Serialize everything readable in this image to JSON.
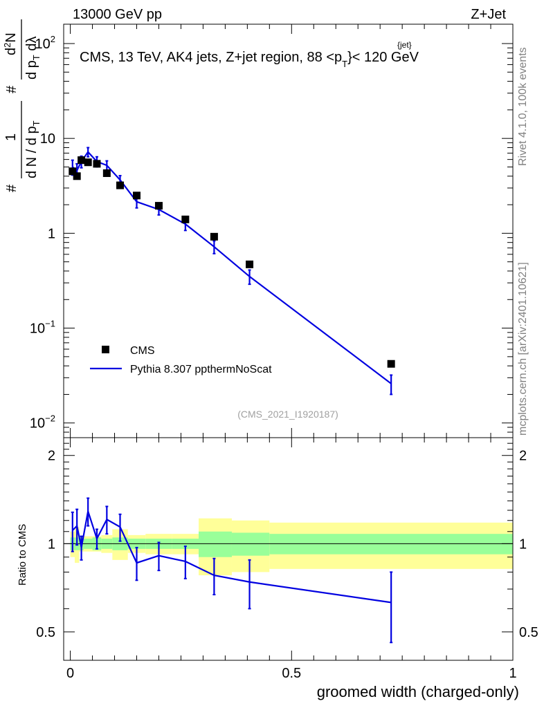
{
  "header": {
    "left": "13000 GeV pp",
    "right": "Z+Jet"
  },
  "side_labels": {
    "rivet": "Rivet 4.1.0,  100k events",
    "mcplots": "mcplots.cern.ch [arXiv:2401.10621]"
  },
  "chart_data": {
    "type": "scatter",
    "title": {
      "main": "CMS, 13 TeV, AK4 jets, Z+jet region, 88 <p",
      "sub": "T",
      "sup": "{jet}",
      "tail": "}< 120 GeV"
    },
    "watermark": "(CMS_2021_I1920187)",
    "xlabel": "groomed width (charged-only)",
    "ylabel_main": {
      "frac1": "1",
      "hash": "#",
      "den1": "d N / d p",
      "den1_sub": "T",
      "num2": "d",
      "num2_sup": "2",
      "num2_tail": "N",
      "hash2": "#",
      "den2": "d p",
      "den2_sub": "T",
      "den2_tail": " dλ"
    },
    "ylabel_ratio": "Ratio to CMS",
    "xlim": [
      -0.015,
      1.0
    ],
    "ylim_main": [
      0.007,
      160
    ],
    "ylim_ratio": [
      0.4,
      2.3
    ],
    "x_ticks": [
      {
        "v": 0,
        "label": "0"
      },
      {
        "v": 0.5,
        "label": "0.5"
      },
      {
        "v": 1,
        "label": "1"
      }
    ],
    "y_ticks_main": [
      {
        "v": 0.01,
        "base": "10",
        "exp": "−2"
      },
      {
        "v": 0.1,
        "base": "10",
        "exp": "−1"
      },
      {
        "v": 1,
        "base": "1",
        "exp": ""
      },
      {
        "v": 10,
        "base": "10",
        "exp": ""
      },
      {
        "v": 100,
        "base": "10",
        "exp": "2"
      }
    ],
    "y_ticks_ratio": [
      {
        "v": 0.5,
        "label": "0.5"
      },
      {
        "v": 1,
        "label": "1"
      },
      {
        "v": 2,
        "label": "2"
      }
    ],
    "legend": {
      "placement": "lower-left",
      "data_label": "CMS",
      "mc_label": "Pythia 8.307 ppthermNoScat"
    },
    "colors": {
      "data": "#000000",
      "mc": "#0000e0",
      "band_inner": "#99ff99",
      "band_outer": "#ffff99"
    },
    "data": [
      {
        "x": 0.005,
        "xlo": 0.0,
        "xhi": 0.01,
        "y": 4.5,
        "stat": 0.05,
        "tot": 0.1
      },
      {
        "x": 0.015,
        "xlo": 0.01,
        "xhi": 0.02,
        "y": 4.0,
        "stat": 0.05,
        "tot": 0.14
      },
      {
        "x": 0.025,
        "xlo": 0.02,
        "xhi": 0.03,
        "y": 5.9,
        "stat": 0.05,
        "tot": 0.06
      },
      {
        "x": 0.04,
        "xlo": 0.03,
        "xhi": 0.05,
        "y": 5.6,
        "stat": 0.04,
        "tot": 0.06
      },
      {
        "x": 0.06,
        "xlo": 0.05,
        "xhi": 0.07,
        "y": 5.4,
        "stat": 0.05,
        "tot": 0.06
      },
      {
        "x": 0.0825,
        "xlo": 0.07,
        "xhi": 0.095,
        "y": 4.3,
        "stat": 0.04,
        "tot": 0.07
      },
      {
        "x": 0.1125,
        "xlo": 0.095,
        "xhi": 0.13,
        "y": 3.2,
        "stat": 0.05,
        "tot": 0.12
      },
      {
        "x": 0.15,
        "xlo": 0.13,
        "xhi": 0.17,
        "y": 2.5,
        "stat": 0.04,
        "tot": 0.07
      },
      {
        "x": 0.2,
        "xlo": 0.17,
        "xhi": 0.23,
        "y": 1.95,
        "stat": 0.04,
        "tot": 0.08
      },
      {
        "x": 0.26,
        "xlo": 0.23,
        "xhi": 0.29,
        "y": 1.4,
        "stat": 0.04,
        "tot": 0.08
      },
      {
        "x": 0.325,
        "xlo": 0.29,
        "xhi": 0.365,
        "y": 0.92,
        "stat": 0.1,
        "tot": 0.22
      },
      {
        "x": 0.405,
        "xlo": 0.365,
        "xhi": 0.45,
        "y": 0.47,
        "stat": 0.09,
        "tot": 0.2
      },
      {
        "x": 0.725,
        "xlo": 0.45,
        "xhi": 1.0,
        "y": 0.042,
        "stat": 0.08,
        "tot": 0.18
      }
    ],
    "mc": [
      {
        "x": 0.005,
        "y": 5.0,
        "err": 0.9,
        "ratio": 1.11,
        "rerr": 0.17
      },
      {
        "x": 0.015,
        "y": 4.6,
        "err": 0.8,
        "ratio": 1.15,
        "rerr": 0.16
      },
      {
        "x": 0.025,
        "y": 5.7,
        "err": 0.8,
        "ratio": 0.97,
        "rerr": 0.09
      },
      {
        "x": 0.04,
        "y": 7.2,
        "err": 0.8,
        "ratio": 1.29,
        "rerr": 0.14
      },
      {
        "x": 0.06,
        "y": 5.7,
        "err": 0.7,
        "ratio": 1.04,
        "rerr": 0.08
      },
      {
        "x": 0.0825,
        "y": 5.2,
        "err": 0.6,
        "ratio": 1.21,
        "rerr": 0.13
      },
      {
        "x": 0.1125,
        "y": 3.65,
        "err": 0.4,
        "ratio": 1.14,
        "rerr": 0.12
      },
      {
        "x": 0.15,
        "y": 2.15,
        "err": 0.3,
        "ratio": 0.86,
        "rerr": 0.11
      },
      {
        "x": 0.2,
        "y": 1.78,
        "err": 0.22,
        "ratio": 0.91,
        "rerr": 0.1
      },
      {
        "x": 0.26,
        "y": 1.25,
        "err": 0.18,
        "ratio": 0.87,
        "rerr": 0.11
      },
      {
        "x": 0.325,
        "y": 0.72,
        "err": 0.11,
        "ratio": 0.78,
        "rerr": 0.11
      },
      {
        "x": 0.405,
        "y": 0.35,
        "err": 0.06,
        "ratio": 0.74,
        "rerr": 0.14
      },
      {
        "x": 0.725,
        "y": 0.026,
        "err": 0.006,
        "ratio": 0.63,
        "rerr": 0.17
      }
    ]
  }
}
